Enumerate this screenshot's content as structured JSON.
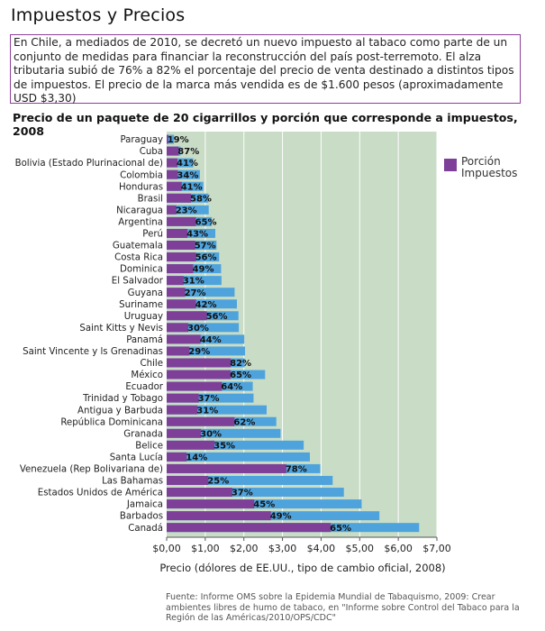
{
  "page": {
    "title": "Impuestos y Precios",
    "intro": "En Chile, a mediados de 2010, se decretó un nuevo impuesto al tabaco como parte de un conjunto de medidas para financiar la reconstrucción del país post-terremoto. El alza tributaria subió de 76% a 82% el porcentaje del precio de venta destinado a distintos tipos de impuestos. El precio de la marca más vendida es de $1.600 pesos (aproximadamente USD $3,30)",
    "chart_title": "Precio de un paquete de 20 cigarrillos y porción que corresponde a impuestos, 2008",
    "source": "Fuente: Informe OMS sobre la Epidemia Mundial de  Tabaquismo, 2009: Crear ambientes libres de humo de tabaco, en \"Informe sobre Control del Tabaco para la Región de las Américas/2010/OPS/CDC\""
  },
  "chart_data": {
    "type": "bar",
    "orientation": "horizontal",
    "xlabel": "Precio (dólores de EE.UU., tipo de cambio oficial, 2008)",
    "ylabel": "",
    "xlim": [
      0,
      7
    ],
    "x_ticks": [
      "$0,00",
      "$1,00",
      "$2,00",
      "$3,00",
      "$4,00",
      "$5,00",
      "$6,00",
      "$7,00"
    ],
    "grid": true,
    "legend": {
      "position": "right",
      "label": "Porción Impuestos"
    },
    "colors": {
      "total": "#4fa3dd",
      "tax": "#7e3f98",
      "background": "#c8dcc6",
      "grid": "#ffffff"
    },
    "categories": [
      "Paraguay",
      "Cuba",
      "Bolivia (Estado Plurinacional de)",
      "Colombia",
      "Honduras",
      "Brasil",
      "Nicaragua",
      "Argentina",
      "Perú",
      "Guatemala",
      "Costa Rica",
      "Dominica",
      "El Salvador",
      "Guyana",
      "Suriname",
      "Uruguay",
      "Saint Kitts y Nevis",
      "Panamá",
      "Saint Vincente y ls Grenadinas",
      "Chile",
      "México",
      "Ecuador",
      "Trinidad y Tobago",
      "Antigua y Barbuda",
      "República Dominicana",
      "Granada",
      "Belice",
      "Santa Lucía",
      "Venezuela (Rep Bolivariana de)",
      "Las Bahamas",
      "Estados Unidos de América",
      "Jamaica",
      "Barbados",
      "Canadá"
    ],
    "series": [
      {
        "name": "",
        "values": [
          0.19,
          0.36,
          0.69,
          0.86,
          0.95,
          1.08,
          1.09,
          1.17,
          1.26,
          1.29,
          1.36,
          1.41,
          1.42,
          1.76,
          1.82,
          1.86,
          1.87,
          2.01,
          2.03,
          2.02,
          2.55,
          2.23,
          2.25,
          2.59,
          2.84,
          2.95,
          3.55,
          3.71,
          3.98,
          4.3,
          4.59,
          5.05,
          5.51,
          6.54
        ]
      },
      {
        "name": "Porción Impuestos",
        "values": [
          0.04,
          0.31,
          0.28,
          0.29,
          0.39,
          0.63,
          0.25,
          0.76,
          0.54,
          0.74,
          0.76,
          0.69,
          0.44,
          0.48,
          0.76,
          1.04,
          0.56,
          0.88,
          0.59,
          1.66,
          1.66,
          1.43,
          0.83,
          0.8,
          1.76,
          0.89,
          1.24,
          0.52,
          3.1,
          1.08,
          1.7,
          2.27,
          2.7,
          4.25
        ]
      }
    ],
    "data_labels": [
      "19%",
      "87%",
      "41%",
      "34%",
      "41%",
      "58%",
      "23%",
      "65%",
      "43%",
      "57%",
      "56%",
      "49%",
      "31%",
      "27%",
      "42%",
      "56%",
      "30%",
      "44%",
      "29%",
      "82%",
      "65%",
      "64%",
      "37%",
      "31%",
      "62%",
      "30%",
      "35%",
      "14%",
      "78%",
      "25%",
      "37%",
      "45%",
      "49%",
      "65%"
    ]
  }
}
